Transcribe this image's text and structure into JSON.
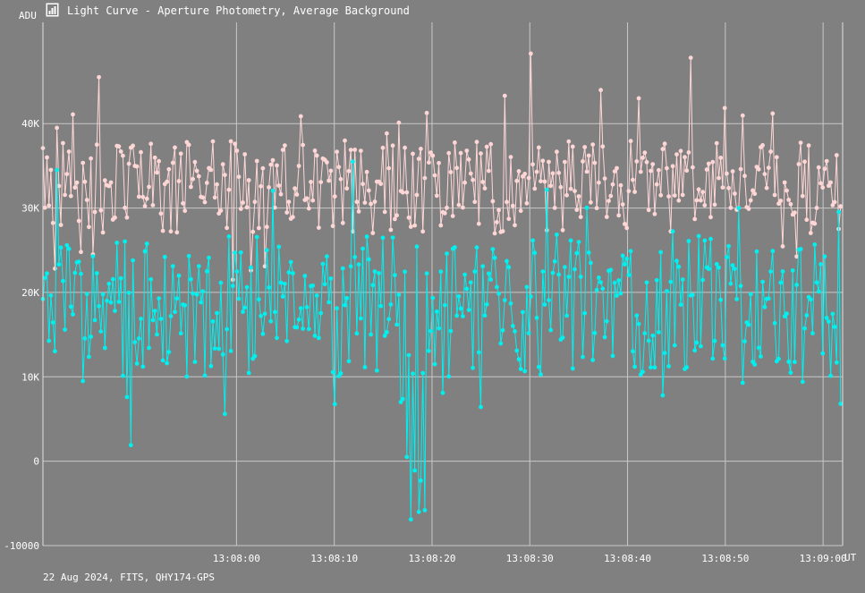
{
  "window": {
    "title": "Light Curve - Aperture Photometry, Average Background",
    "icon": "chart-window-icon"
  },
  "footer": {
    "info": "22 Aug 2024, FITS, QHY174-GPS"
  },
  "chart_data": {
    "type": "line",
    "title": "Light Curve - Aperture Photometry, Average Background",
    "ylabel": "ADU",
    "xlabel": "UT",
    "x_unit": "seconds after 13:07:50 UT",
    "xlim": [
      -9.8,
      72.0
    ],
    "ylim": [
      -10000,
      52000
    ],
    "x_ticks": [
      10,
      20,
      30,
      40,
      50,
      60,
      70
    ],
    "x_tick_labels": [
      "13:08:00",
      "13:08:10",
      "13:08:20",
      "13:08:30",
      "13:08:40",
      "13:08:50",
      "13:09:00"
    ],
    "y_ticks": [
      -10000,
      0,
      10000,
      20000,
      30000,
      40000
    ],
    "y_tick_labels": [
      "-10000",
      "0",
      "10K",
      "20K",
      "30K",
      "40K"
    ],
    "grid": true,
    "legend": "none",
    "series": [
      {
        "color": "#ffd6d6",
        "summary": {
          "typical_range": [
            27000,
            38000
          ],
          "max": 48400,
          "min": 21500
        }
      },
      {
        "color": "#00f0f0",
        "summary": {
          "typical_range": [
            10000,
            27000
          ],
          "max": 36500,
          "min": -6900
        }
      }
    ],
    "colors": {
      "background": "#808080",
      "grid": "#c8c8c8",
      "text": "#ffffff"
    }
  }
}
